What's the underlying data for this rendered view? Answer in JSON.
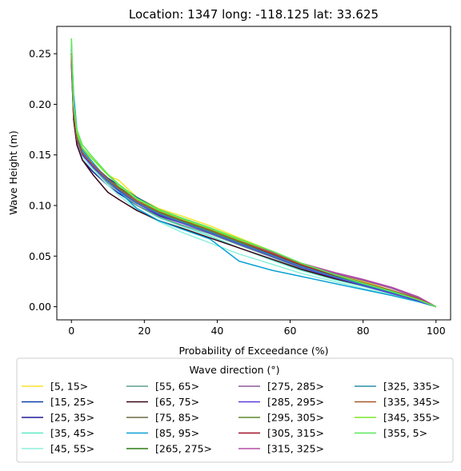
{
  "chart_data": {
    "type": "line",
    "title": "Location: 1347 long: -118.125 lat: 33.625",
    "xlabel": "Probability of Exceedance (%)",
    "ylabel": "Wave Height (m)",
    "xlim": [
      -4,
      104
    ],
    "ylim": [
      -0.013,
      0.277
    ],
    "xticks": [
      0,
      20,
      40,
      60,
      80,
      100
    ],
    "yticks": [
      0.0,
      0.05,
      0.1,
      0.15,
      0.2,
      0.25
    ],
    "ytick_labels": [
      "0.00",
      "0.05",
      "0.10",
      "0.15",
      "0.20",
      "0.25"
    ],
    "grid": false,
    "legend": {
      "title": "Wave direction (°)",
      "placement": "below",
      "columns": 4
    },
    "series": [
      {
        "name": "[5, 15>",
        "color": "#f7e32a",
        "x": [
          0,
          0.6,
          1.5,
          3,
          6,
          10,
          13,
          18,
          24,
          30,
          38,
          46,
          55,
          63,
          72,
          80,
          88,
          95,
          100
        ],
        "y": [
          0.265,
          0.2,
          0.17,
          0.155,
          0.145,
          0.13,
          0.125,
          0.108,
          0.097,
          0.09,
          0.08,
          0.068,
          0.055,
          0.043,
          0.033,
          0.025,
          0.016,
          0.008,
          0.0
        ]
      },
      {
        "name": "[15, 25>",
        "color": "#0c3fa8",
        "x": [
          0,
          0.6,
          1.5,
          3,
          6,
          10,
          13,
          18,
          24,
          30,
          38,
          46,
          55,
          63,
          72,
          80,
          88,
          95,
          100
        ],
        "y": [
          0.25,
          0.19,
          0.165,
          0.15,
          0.14,
          0.127,
          0.12,
          0.108,
          0.096,
          0.088,
          0.078,
          0.066,
          0.053,
          0.041,
          0.031,
          0.023,
          0.015,
          0.007,
          0.0
        ]
      },
      {
        "name": "[25, 35>",
        "color": "#1f1a99",
        "x": [
          0,
          0.6,
          1.5,
          3,
          6,
          10,
          13,
          18,
          24,
          30,
          38,
          46,
          55,
          63,
          72,
          80,
          88,
          95,
          100
        ],
        "y": [
          0.24,
          0.185,
          0.16,
          0.145,
          0.133,
          0.12,
          0.112,
          0.1,
          0.09,
          0.083,
          0.075,
          0.064,
          0.052,
          0.04,
          0.03,
          0.022,
          0.014,
          0.007,
          0.0
        ]
      },
      {
        "name": "[35, 45>",
        "color": "#5ee8c5",
        "x": [
          0,
          0.6,
          1.5,
          3,
          6,
          10,
          13,
          18,
          24,
          30,
          38,
          46,
          55,
          63,
          72,
          80,
          88,
          95,
          100
        ],
        "y": [
          0.25,
          0.19,
          0.165,
          0.15,
          0.138,
          0.123,
          0.114,
          0.1,
          0.088,
          0.08,
          0.07,
          0.058,
          0.046,
          0.036,
          0.027,
          0.02,
          0.013,
          0.006,
          0.0
        ]
      },
      {
        "name": "[45, 55>",
        "color": "#8df0dc",
        "x": [
          0,
          0.6,
          1.5,
          3,
          6,
          10,
          13,
          18,
          24,
          30,
          38,
          46,
          55,
          63,
          72,
          80,
          88,
          95,
          100
        ],
        "y": [
          0.245,
          0.185,
          0.162,
          0.148,
          0.135,
          0.12,
          0.11,
          0.096,
          0.084,
          0.074,
          0.063,
          0.052,
          0.042,
          0.033,
          0.025,
          0.018,
          0.012,
          0.006,
          0.0
        ]
      },
      {
        "name": "[55, 65>",
        "color": "#5e9e8e",
        "x": [
          0,
          0.6,
          1.5,
          3,
          6,
          10,
          13,
          18,
          24,
          30,
          38,
          46,
          55,
          63,
          72,
          80,
          88,
          95,
          100
        ],
        "y": [
          0.25,
          0.19,
          0.165,
          0.15,
          0.137,
          0.122,
          0.114,
          0.1,
          0.089,
          0.081,
          0.072,
          0.061,
          0.049,
          0.038,
          0.029,
          0.021,
          0.014,
          0.007,
          0.0
        ]
      },
      {
        "name": "[65, 75>",
        "color": "#3a0418",
        "x": [
          0,
          0.6,
          1.5,
          3,
          6,
          10,
          13,
          18,
          24,
          30,
          38,
          46,
          55,
          63,
          72,
          80,
          88,
          95,
          100
        ],
        "y": [
          0.245,
          0.185,
          0.16,
          0.145,
          0.13,
          0.113,
          0.106,
          0.095,
          0.085,
          0.078,
          0.068,
          0.058,
          0.047,
          0.037,
          0.028,
          0.021,
          0.013,
          0.006,
          0.0
        ]
      },
      {
        "name": "[75, 85>",
        "color": "#6e6a45",
        "x": [
          0,
          0.6,
          1.5,
          3,
          6,
          10,
          13,
          18,
          24,
          30,
          38,
          46,
          55,
          63,
          72,
          80,
          88,
          95,
          100
        ],
        "y": [
          0.25,
          0.19,
          0.165,
          0.15,
          0.138,
          0.124,
          0.116,
          0.103,
          0.092,
          0.084,
          0.074,
          0.063,
          0.051,
          0.04,
          0.03,
          0.022,
          0.014,
          0.007,
          0.0
        ]
      },
      {
        "name": "[85, 95>",
        "color": "#0aa0d6",
        "x": [
          0,
          0.6,
          1.5,
          3,
          6,
          10,
          13,
          18,
          24,
          30,
          38,
          46,
          55,
          63,
          72,
          80,
          88,
          95,
          100
        ],
        "y": [
          0.26,
          0.21,
          0.175,
          0.155,
          0.142,
          0.125,
          0.114,
          0.097,
          0.085,
          0.077,
          0.067,
          0.045,
          0.036,
          0.03,
          0.023,
          0.017,
          0.011,
          0.005,
          0.0
        ]
      },
      {
        "name": "[265, 275>",
        "color": "#2e7a14",
        "x": [
          0,
          0.6,
          1.5,
          3,
          6,
          10,
          13,
          18,
          24,
          30,
          38,
          46,
          55,
          63,
          72,
          80,
          88,
          95,
          100
        ],
        "y": [
          0.25,
          0.19,
          0.166,
          0.152,
          0.14,
          0.126,
          0.118,
          0.106,
          0.095,
          0.087,
          0.077,
          0.066,
          0.054,
          0.042,
          0.031,
          0.023,
          0.015,
          0.007,
          0.0
        ]
      },
      {
        "name": "[275, 285>",
        "color": "#8a5a98",
        "x": [
          0,
          0.6,
          1.5,
          3,
          6,
          10,
          13,
          18,
          24,
          30,
          38,
          46,
          55,
          63,
          72,
          80,
          88,
          95,
          100
        ],
        "y": [
          0.25,
          0.19,
          0.166,
          0.152,
          0.14,
          0.126,
          0.117,
          0.104,
          0.093,
          0.085,
          0.076,
          0.065,
          0.053,
          0.042,
          0.033,
          0.026,
          0.018,
          0.009,
          0.0
        ]
      },
      {
        "name": "[285, 295>",
        "color": "#5a3ae0",
        "x": [
          0,
          0.6,
          1.5,
          3,
          6,
          10,
          13,
          18,
          24,
          30,
          38,
          46,
          55,
          63,
          72,
          80,
          88,
          95,
          100
        ],
        "y": [
          0.25,
          0.19,
          0.165,
          0.15,
          0.138,
          0.124,
          0.115,
          0.102,
          0.091,
          0.083,
          0.073,
          0.062,
          0.05,
          0.039,
          0.029,
          0.021,
          0.013,
          0.006,
          0.0
        ]
      },
      {
        "name": "[295, 305>",
        "color": "#5a8a2a",
        "x": [
          0,
          0.6,
          1.5,
          3,
          6,
          10,
          13,
          18,
          24,
          30,
          38,
          46,
          55,
          63,
          72,
          80,
          88,
          95,
          100
        ],
        "y": [
          0.25,
          0.19,
          0.166,
          0.152,
          0.14,
          0.126,
          0.117,
          0.104,
          0.093,
          0.085,
          0.075,
          0.064,
          0.052,
          0.041,
          0.031,
          0.023,
          0.015,
          0.007,
          0.0
        ]
      },
      {
        "name": "[305, 315>",
        "color": "#a0102a",
        "x": [
          0,
          0.6,
          1.5,
          3,
          6,
          10,
          13,
          18,
          24,
          30,
          38,
          46,
          55,
          63,
          72,
          80,
          88,
          95,
          100
        ],
        "y": [
          0.25,
          0.19,
          0.166,
          0.152,
          0.14,
          0.125,
          0.116,
          0.103,
          0.092,
          0.084,
          0.074,
          0.063,
          0.052,
          0.041,
          0.031,
          0.023,
          0.015,
          0.007,
          0.0
        ]
      },
      {
        "name": "[315, 325>",
        "color": "#b84aa8",
        "x": [
          0,
          0.6,
          1.5,
          3,
          6,
          10,
          13,
          18,
          24,
          30,
          38,
          46,
          55,
          63,
          72,
          80,
          88,
          95,
          100
        ],
        "y": [
          0.25,
          0.19,
          0.166,
          0.152,
          0.14,
          0.126,
          0.117,
          0.105,
          0.094,
          0.086,
          0.077,
          0.066,
          0.054,
          0.043,
          0.034,
          0.027,
          0.019,
          0.01,
          0.0
        ]
      },
      {
        "name": "[325, 335>",
        "color": "#2a90a8",
        "x": [
          0,
          0.6,
          1.5,
          3,
          6,
          10,
          13,
          18,
          24,
          30,
          38,
          46,
          55,
          63,
          72,
          80,
          88,
          95,
          100
        ],
        "y": [
          0.255,
          0.195,
          0.168,
          0.153,
          0.14,
          0.125,
          0.116,
          0.103,
          0.092,
          0.084,
          0.074,
          0.063,
          0.051,
          0.04,
          0.03,
          0.022,
          0.014,
          0.007,
          0.0
        ]
      },
      {
        "name": "[335, 345>",
        "color": "#a8582a",
        "x": [
          0,
          0.6,
          1.5,
          3,
          6,
          10,
          13,
          18,
          24,
          30,
          38,
          46,
          55,
          63,
          72,
          80,
          88,
          95,
          100
        ],
        "y": [
          0.25,
          0.19,
          0.166,
          0.152,
          0.14,
          0.126,
          0.117,
          0.104,
          0.094,
          0.086,
          0.076,
          0.065,
          0.053,
          0.042,
          0.032,
          0.024,
          0.016,
          0.008,
          0.0
        ]
      },
      {
        "name": "[345, 355>",
        "color": "#7ae82a",
        "x": [
          0,
          0.6,
          1.5,
          3,
          6,
          10,
          13,
          18,
          24,
          30,
          38,
          46,
          55,
          63,
          72,
          80,
          88,
          95,
          100
        ],
        "y": [
          0.265,
          0.2,
          0.172,
          0.157,
          0.145,
          0.13,
          0.12,
          0.106,
          0.095,
          0.087,
          0.077,
          0.066,
          0.055,
          0.043,
          0.032,
          0.023,
          0.015,
          0.007,
          0.0
        ]
      },
      {
        "name": "[355, 5>",
        "color": "#5ae85a",
        "x": [
          0,
          0.6,
          1.5,
          3,
          6,
          10,
          13,
          18,
          24,
          30,
          38,
          46,
          55,
          63,
          72,
          80,
          88,
          95,
          100
        ],
        "y": [
          0.265,
          0.2,
          0.175,
          0.16,
          0.147,
          0.131,
          0.121,
          0.107,
          0.096,
          0.088,
          0.078,
          0.067,
          0.055,
          0.043,
          0.032,
          0.023,
          0.015,
          0.007,
          0.0
        ]
      }
    ]
  }
}
